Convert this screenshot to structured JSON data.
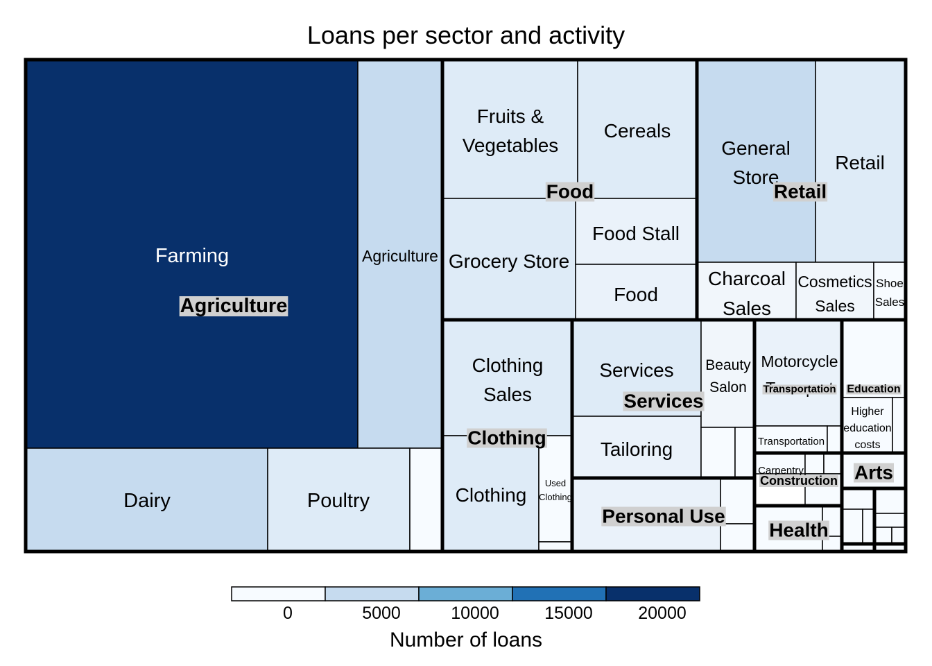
{
  "chart_data": {
    "type": "treemap",
    "title": "Loans per sector and activity",
    "legend": {
      "title": "Number of loans",
      "ticks": [
        0,
        5000,
        10000,
        15000,
        20000
      ],
      "bins": [
        {
          "color": "#f7fbff"
        },
        {
          "color": "#c6dbef"
        },
        {
          "color": "#6baed6"
        },
        {
          "color": "#2171b5"
        },
        {
          "color": "#08306b"
        }
      ],
      "placement": "bottom"
    },
    "sectors": [
      {
        "name": "Agriculture",
        "activities": [
          {
            "name": "Farming",
            "value": 22500,
            "color": "#08306b",
            "text_color": "#ffffff"
          },
          {
            "name": "Agriculture",
            "value": 4900,
            "color": "#c6dbef"
          },
          {
            "name": "Dairy",
            "value": 2600,
            "color": "#c6dbef"
          },
          {
            "name": "Poultry",
            "value": 1500,
            "color": "#deebf7"
          },
          {
            "name": "",
            "value": 350,
            "color": "#f7fbff"
          }
        ]
      },
      {
        "name": "Food",
        "activities": [
          {
            "name": "Fruits & Vegetables",
            "value": 2700,
            "color": "#deebf7"
          },
          {
            "name": "Cereals",
            "value": 2200,
            "color": "#deebf7"
          },
          {
            "name": "Grocery Store",
            "value": 2000,
            "color": "#deebf7"
          },
          {
            "name": "Food Stall",
            "value": 1100,
            "color": "#eaf2fa"
          },
          {
            "name": "Food",
            "value": 1000,
            "color": "#eaf2fa"
          }
        ]
      },
      {
        "name": "Retail",
        "activities": [
          {
            "name": "General Store",
            "value": 3500,
            "color": "#c6dbef"
          },
          {
            "name": "Retail",
            "value": 2600,
            "color": "#deebf7"
          },
          {
            "name": "Charcoal Sales",
            "value": 900,
            "color": "#f1f6fb"
          },
          {
            "name": "Cosmetics Sales",
            "value": 750,
            "color": "#f1f6fb"
          },
          {
            "name": "Shoe Sales",
            "value": 250,
            "color": "#f7fbff"
          }
        ]
      },
      {
        "name": "Clothing",
        "activities": [
          {
            "name": "Clothing Sales",
            "value": 2700,
            "color": "#deebf7"
          },
          {
            "name": "Clothing",
            "value": 1800,
            "color": "#deebf7"
          },
          {
            "name": "Used Clothing",
            "value": 300,
            "color": "#f7fbff"
          },
          {
            "name": "",
            "value": 80,
            "color": "#f7fbff"
          }
        ]
      },
      {
        "name": "Services",
        "activities": [
          {
            "name": "Services",
            "value": 1800,
            "color": "#deebf7"
          },
          {
            "name": "Tailoring",
            "value": 1200,
            "color": "#eaf2fa"
          },
          {
            "name": "Beauty Salon",
            "value": 500,
            "color": "#f1f6fb"
          },
          {
            "name": "",
            "value": 150,
            "color": "#f7fbff"
          },
          {
            "name": "",
            "value": 100,
            "color": "#f7fbff"
          },
          {
            "name": "",
            "value": 80,
            "color": "#f7fbff"
          }
        ]
      },
      {
        "name": "Personal Use",
        "activities": [
          {
            "name": "",
            "value": 1600,
            "color": "#eaf2fa"
          },
          {
            "name": "",
            "value": 200,
            "color": "#f7fbff"
          },
          {
            "name": "",
            "value": 150,
            "color": "#f7fbff"
          }
        ]
      },
      {
        "name": "Transportation",
        "activities": [
          {
            "name": "Motorcycle Transport",
            "value": 800,
            "color": "#eaf2fa"
          },
          {
            "name": "Transportation",
            "value": 300,
            "color": "#f7fbff"
          },
          {
            "name": "",
            "value": 50,
            "color": "#f7fbff"
          }
        ]
      },
      {
        "name": "Education",
        "activities": [
          {
            "name": "",
            "value": 350,
            "color": "#f7fbff"
          },
          {
            "name": "Higher education costs",
            "value": 320,
            "color": "#f7fbff"
          },
          {
            "name": "",
            "value": 60,
            "color": "#f7fbff"
          }
        ]
      },
      {
        "name": "Construction",
        "activities": [
          {
            "name": "Carpentry",
            "value": 120,
            "color": "#f7fbff"
          },
          {
            "name": "",
            "value": 80,
            "color": "#f7fbff"
          },
          {
            "name": "",
            "value": 70,
            "color": "#f7fbff"
          },
          {
            "name": "",
            "value": 50,
            "color": "#f7fbff"
          }
        ]
      },
      {
        "name": "Arts",
        "activities": [
          {
            "name": "",
            "value": 250,
            "color": "#f7fbff"
          }
        ]
      },
      {
        "name": "Health",
        "activities": [
          {
            "name": "",
            "value": 450,
            "color": "#f7fbff"
          },
          {
            "name": "",
            "value": 40,
            "color": "#f7fbff"
          },
          {
            "name": "",
            "value": 30,
            "color": "#f7fbff"
          }
        ]
      },
      {
        "name": "",
        "activities": [
          {
            "name": "",
            "value": 70,
            "color": "#f7fbff"
          },
          {
            "name": "",
            "value": 40,
            "color": "#f7fbff"
          },
          {
            "name": "",
            "value": 30,
            "color": "#f7fbff"
          }
        ]
      },
      {
        "name": "",
        "activities": [
          {
            "name": "",
            "value": 60,
            "color": "#f7fbff"
          },
          {
            "name": "",
            "value": 40,
            "color": "#f7fbff"
          },
          {
            "name": "",
            "value": 30,
            "color": "#f7fbff"
          },
          {
            "name": "",
            "value": 20,
            "color": "#f7fbff"
          }
        ]
      },
      {
        "name": "",
        "activities": [
          {
            "name": "",
            "value": 30,
            "color": "#f7fbff"
          }
        ]
      },
      {
        "name": "",
        "activities": [
          {
            "name": "",
            "value": 20,
            "color": "#f7fbff"
          }
        ]
      }
    ]
  }
}
